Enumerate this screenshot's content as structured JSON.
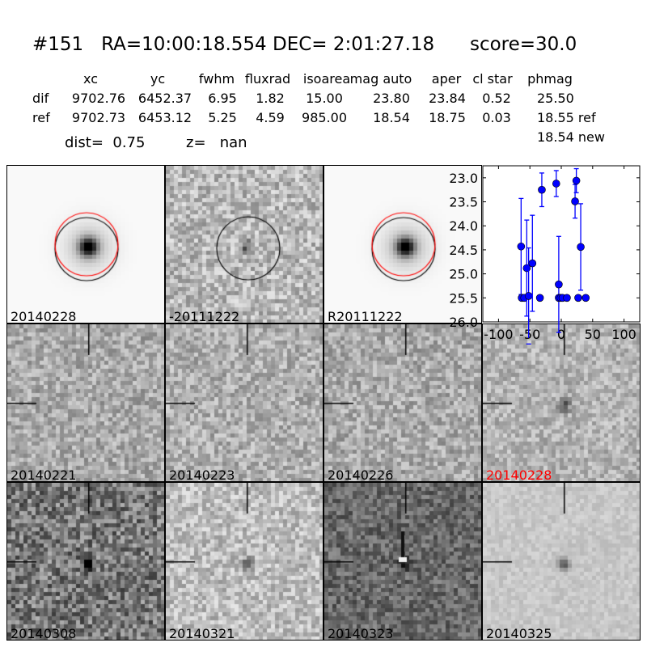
{
  "header": {
    "title": "#151   RA=10:00:18.554 DEC= 2:01:27.18      score=30.0"
  },
  "table": {
    "columns": [
      "xc",
      "yc",
      "fwhm",
      "fluxrad",
      "isoarea",
      "mag auto",
      "aper",
      "cl star",
      "phmag"
    ],
    "rows": [
      {
        "label": "dif",
        "values": [
          "9702.76",
          "6452.37",
          "6.95",
          "1.82",
          "15.00",
          "23.80",
          "23.84",
          "0.52",
          "25.50"
        ]
      },
      {
        "label": "ref",
        "values": [
          "9702.73",
          "6453.12",
          "5.25",
          "4.59",
          "985.00",
          "18.54",
          "18.75",
          "0.03",
          "18.55 ref"
        ]
      }
    ],
    "extra_phmag": "18.54 new",
    "dist": "dist=  0.75",
    "z": "z=   nan"
  },
  "stamps": [
    {
      "label": "20140228",
      "color": "#000000"
    },
    {
      "label": "-20111222",
      "color": "#000000"
    },
    {
      "label": "R20111222",
      "color": "#000000"
    },
    {
      "label": "20140221",
      "color": "#000000"
    },
    {
      "label": "20140223",
      "color": "#000000"
    },
    {
      "label": "20140226",
      "color": "#000000"
    },
    {
      "label": "20140228",
      "color": "#ff0000"
    },
    {
      "label": "20140308",
      "color": "#000000"
    },
    {
      "label": "20140321",
      "color": "#000000"
    },
    {
      "label": "20140323",
      "color": "#000000"
    },
    {
      "label": "20140325",
      "color": "#000000"
    }
  ],
  "chart_data": {
    "type": "scatter",
    "xlim": [
      -125,
      125
    ],
    "ylim": [
      26.0,
      22.75
    ],
    "y_inverted": true,
    "xticks": [
      "-100",
      "-50",
      "0",
      "50",
      "100"
    ],
    "yticks": [
      "23.0",
      "23.5",
      "24.0",
      "24.5",
      "25.0",
      "25.5",
      "26.0"
    ],
    "marker_color": "#0000ff",
    "points": [
      {
        "x": -64,
        "y": 24.43,
        "err": 1.0
      },
      {
        "x": -63,
        "y": 25.5,
        "err": 0.05
      },
      {
        "x": -59,
        "y": 25.5,
        "err": 0.05
      },
      {
        "x": -55,
        "y": 24.88,
        "err": 1.0
      },
      {
        "x": -52,
        "y": 25.46,
        "err": 1.0
      },
      {
        "x": -46,
        "y": 24.78,
        "err": 1.0
      },
      {
        "x": -34,
        "y": 25.5,
        "err": 0.05
      },
      {
        "x": -31,
        "y": 23.25,
        "err": 0.35
      },
      {
        "x": -8,
        "y": 23.12,
        "err": 0.27
      },
      {
        "x": -4,
        "y": 25.22,
        "err": 1.0
      },
      {
        "x": -4,
        "y": 25.5,
        "err": 0.05
      },
      {
        "x": -1,
        "y": 25.5,
        "err": 0.05
      },
      {
        "x": 2,
        "y": 25.5,
        "err": 0.05
      },
      {
        "x": 9,
        "y": 25.5,
        "err": 0.05
      },
      {
        "x": 22,
        "y": 23.49,
        "err": 0.35
      },
      {
        "x": 24,
        "y": 23.06,
        "err": 0.25
      },
      {
        "x": 27,
        "y": 25.5,
        "err": 0.05
      },
      {
        "x": 31,
        "y": 24.44,
        "err": 0.9
      },
      {
        "x": 39,
        "y": 25.5,
        "err": 0.05
      }
    ]
  }
}
